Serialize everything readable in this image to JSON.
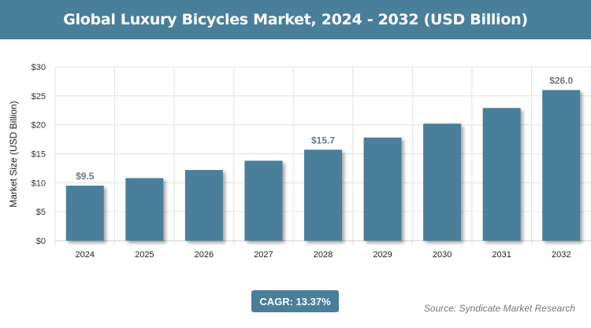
{
  "header": {
    "title": "Global Luxury Bicycles Market, 2024 - 2032 (USD Billion)"
  },
  "chart_data": {
    "type": "bar",
    "title": "Global Luxury Bicycles Market, 2024 - 2032 (USD Billion)",
    "categories": [
      "2024",
      "2025",
      "2026",
      "2027",
      "2028",
      "2029",
      "2030",
      "2031",
      "2032"
    ],
    "values": [
      9.5,
      10.8,
      12.2,
      13.8,
      15.7,
      17.8,
      20.2,
      22.9,
      26.0
    ],
    "data_labels": {
      "2024": "$9.5",
      "2028": "$15.7",
      "2032": "$26.0"
    },
    "xlabel": "",
    "ylabel": "Market Size (USD Billion)",
    "ylim": [
      0,
      30
    ],
    "yticks": [
      0,
      5,
      10,
      15,
      20,
      25,
      30
    ],
    "ytick_labels": [
      "$0",
      "$5",
      "$10",
      "$15",
      "$20",
      "$25",
      "$30"
    ],
    "grid": true,
    "bar_color": "#4a7f9b"
  },
  "footer": {
    "cagr": "CAGR: 13.37%",
    "source": "Source: Syndicate Market Research"
  }
}
